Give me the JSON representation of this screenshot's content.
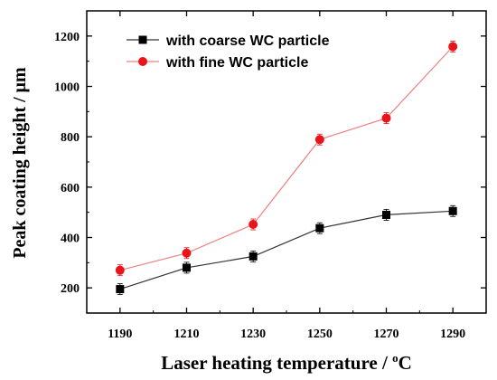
{
  "chart_data": {
    "type": "line",
    "xlabel": "Laser heating temperature / °C",
    "ylabel": "Peak coating height / μm",
    "x": [
      1190,
      1210,
      1230,
      1250,
      1270,
      1290
    ],
    "xlim": [
      1180,
      1300
    ],
    "ylim": [
      100,
      1300
    ],
    "x_ticks": [
      1190,
      1210,
      1230,
      1250,
      1270,
      1290
    ],
    "y_ticks": [
      200,
      400,
      600,
      800,
      1000,
      1200
    ],
    "grid": false,
    "legend_position": "top-left",
    "series": [
      {
        "name": "with coarse WC particle",
        "values": [
          195,
          280,
          325,
          437,
          490,
          505
        ],
        "marker": "square",
        "color": "#000000",
        "line_color": "#333333"
      },
      {
        "name": "with fine WC particle",
        "values": [
          270,
          338,
          452,
          789,
          874,
          1158
        ],
        "marker": "circle",
        "color": "#e8141a",
        "line_color": "#f08080"
      }
    ]
  }
}
